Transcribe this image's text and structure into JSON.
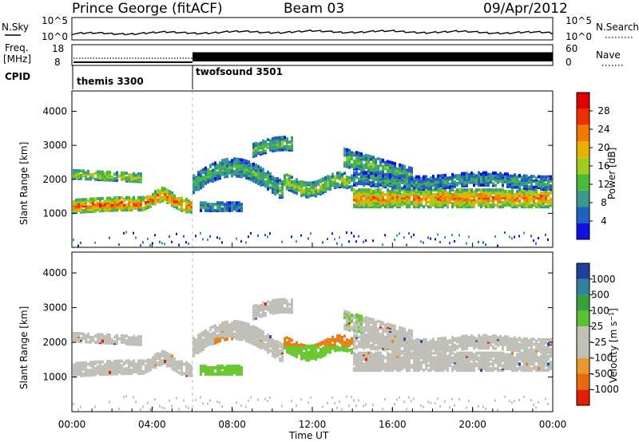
{
  "header": {
    "station": "Prince George (fitACF)",
    "beam": "Beam 03",
    "date": "09/Apr/2012"
  },
  "sky_panel": {
    "left_label": "N.Sky",
    "right_label": "N.Search",
    "left_ticks": [
      "10^5",
      "10^0"
    ],
    "right_ticks": [
      "10^5",
      "10^0"
    ]
  },
  "freq_panel": {
    "left_label_1": "Freq.",
    "left_label_2": "[MHz]",
    "right_label": "Nave",
    "left_ticks": [
      "18",
      "8"
    ],
    "right_ticks": [
      "60",
      "0"
    ]
  },
  "cpid_panel": {
    "label": "CPID",
    "modes": [
      {
        "name": "themis 3300",
        "start_hour": 0
      },
      {
        "name": "twofsound 3501",
        "start_hour": 6
      }
    ]
  },
  "x_axis": {
    "label": "Time UT",
    "ticks": [
      "00:00",
      "04:00",
      "08:00",
      "12:00",
      "16:00",
      "20:00",
      "00:00"
    ],
    "range_hours": [
      0,
      24
    ]
  },
  "chart_data": [
    {
      "type": "heatmap",
      "name": "power",
      "ylabel": "Slant Range [km]",
      "yticks": [
        1000,
        2000,
        3000,
        4000
      ],
      "ylim": [
        0,
        4600
      ],
      "colorbar": {
        "label": "Power [dB]",
        "ticks": [
          4,
          8,
          12,
          16,
          20,
          24,
          28
        ],
        "colors": [
          "#1010e0",
          "#2060c0",
          "#3a9a8a",
          "#4aba3a",
          "#a0cc20",
          "#e8b000",
          "#ee7a00",
          "#ee3000",
          "#e00000"
        ],
        "range": [
          0,
          32
        ]
      }
    },
    {
      "type": "heatmap",
      "name": "velocity",
      "ylabel": "Slant Range [km]",
      "yticks": [
        1000,
        2000,
        3000,
        4000
      ],
      "ylim": [
        0,
        4600
      ],
      "colorbar": {
        "label": "Velocity [m s-1]",
        "ticks": [
          "1000",
          "500",
          "100",
          "25",
          "-25",
          "-100",
          "-500",
          "-1000"
        ],
        "colors": [
          "#2040a0",
          "#3080a0",
          "#3aa03a",
          "#5ac030",
          "#c0c0b8",
          "#c0c0b8",
          "#e89a30",
          "#e86a10",
          "#e02000"
        ]
      }
    }
  ],
  "colors": {
    "grey": "#c0c0b8",
    "orange": "#e8801a",
    "green": "#6ac830",
    "blue": "#2a4ab0"
  }
}
